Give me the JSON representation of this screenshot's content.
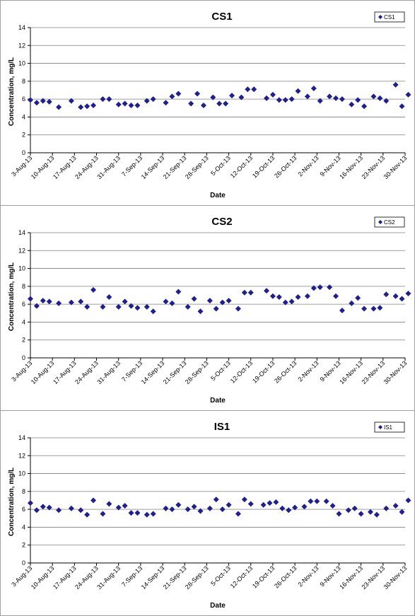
{
  "colors": {
    "marker": "#1f1f8f",
    "axis": "#000000",
    "grid": "#808080",
    "panel_border": "#a0a0a0"
  },
  "charts": [
    {
      "chart_data": {
        "type": "scatter",
        "title": "CS1",
        "xlabel": "Date",
        "ylabel": "Concentration, mg/L",
        "ylim": [
          0,
          14
        ],
        "yticks": [
          "0",
          "2",
          "4",
          "6",
          "8",
          "10",
          "12",
          "14"
        ],
        "xlim": [
          "2013-08-03",
          "2013-11-30"
        ],
        "xticks": [
          "3-Aug-13",
          "10-Aug-13",
          "17-Aug-13",
          "24-Aug-13",
          "31-Aug-13",
          "7-Sep-13",
          "14-Sep-13",
          "21-Sep-13",
          "28-Sep-13",
          "5-Oct-13",
          "12-Oct-13",
          "19-Oct-13",
          "26-Oct-13",
          "2-Nov-13",
          "9-Nov-13",
          "16-Nov-13",
          "23-Nov-13",
          "30-Nov-13"
        ],
        "grid": "horizontal",
        "legend": "top-right",
        "series": [
          {
            "name": "CS1",
            "points": [
              [
                "2013-08-03",
                5.9
              ],
              [
                "2013-08-05",
                5.6
              ],
              [
                "2013-08-07",
                5.8
              ],
              [
                "2013-08-09",
                5.7
              ],
              [
                "2013-08-12",
                5.1
              ],
              [
                "2013-08-16",
                5.8
              ],
              [
                "2013-08-19",
                5.1
              ],
              [
                "2013-08-21",
                5.2
              ],
              [
                "2013-08-23",
                5.3
              ],
              [
                "2013-08-26",
                6.0
              ],
              [
                "2013-08-28",
                6.0
              ],
              [
                "2013-08-31",
                5.4
              ],
              [
                "2013-09-02",
                5.5
              ],
              [
                "2013-09-04",
                5.3
              ],
              [
                "2013-09-06",
                5.3
              ],
              [
                "2013-09-09",
                5.8
              ],
              [
                "2013-09-11",
                6.0
              ],
              [
                "2013-09-15",
                5.6
              ],
              [
                "2013-09-17",
                6.3
              ],
              [
                "2013-09-19",
                6.6
              ],
              [
                "2013-09-23",
                5.5
              ],
              [
                "2013-09-25",
                6.6
              ],
              [
                "2013-09-27",
                5.3
              ],
              [
                "2013-09-30",
                6.2
              ],
              [
                "2013-10-02",
                5.5
              ],
              [
                "2013-10-04",
                5.5
              ],
              [
                "2013-10-06",
                6.4
              ],
              [
                "2013-10-09",
                6.2
              ],
              [
                "2013-10-11",
                7.1
              ],
              [
                "2013-10-13",
                7.1
              ],
              [
                "2013-10-17",
                6.1
              ],
              [
                "2013-10-19",
                6.5
              ],
              [
                "2013-10-21",
                5.9
              ],
              [
                "2013-10-23",
                5.9
              ],
              [
                "2013-10-25",
                6.0
              ],
              [
                "2013-10-27",
                6.9
              ],
              [
                "2013-10-30",
                6.3
              ],
              [
                "2013-11-01",
                7.2
              ],
              [
                "2013-11-03",
                5.8
              ],
              [
                "2013-11-06",
                6.3
              ],
              [
                "2013-11-08",
                6.1
              ],
              [
                "2013-11-10",
                6.0
              ],
              [
                "2013-11-13",
                5.4
              ],
              [
                "2013-11-15",
                5.9
              ],
              [
                "2013-11-17",
                5.2
              ],
              [
                "2013-11-20",
                6.3
              ],
              [
                "2013-11-22",
                6.1
              ],
              [
                "2013-11-24",
                5.8
              ],
              [
                "2013-11-27",
                7.6
              ],
              [
                "2013-11-29",
                5.2
              ],
              [
                "2013-12-01",
                6.5
              ]
            ]
          }
        ]
      }
    },
    {
      "chart_data": {
        "type": "scatter",
        "title": "CS2",
        "xlabel": "Date",
        "ylabel": "Concentration, mg/L",
        "ylim": [
          0,
          14
        ],
        "yticks": [
          "0",
          "2",
          "4",
          "6",
          "8",
          "10",
          "12",
          "14"
        ],
        "xlim": [
          "2013-08-03",
          "2013-11-30"
        ],
        "xticks": [
          "3-Aug-13",
          "10-Aug-13",
          "17-Aug-13",
          "24-Aug-13",
          "31-Aug-13",
          "7-Sep-13",
          "14-Sep-13",
          "21-Sep-13",
          "28-Sep-13",
          "5-Oct-13",
          "12-Oct-13",
          "19-Oct-13",
          "26-Oct-13",
          "2-Nov-13",
          "9-Nov-13",
          "16-Nov-13",
          "23-Nov-13",
          "30-Nov-13"
        ],
        "grid": "horizontal",
        "legend": "top-right",
        "series": [
          {
            "name": "CS2",
            "points": [
              [
                "2013-08-03",
                6.6
              ],
              [
                "2013-08-05",
                5.8
              ],
              [
                "2013-08-07",
                6.4
              ],
              [
                "2013-08-09",
                6.3
              ],
              [
                "2013-08-12",
                6.1
              ],
              [
                "2013-08-16",
                6.2
              ],
              [
                "2013-08-19",
                6.3
              ],
              [
                "2013-08-21",
                5.7
              ],
              [
                "2013-08-23",
                7.6
              ],
              [
                "2013-08-26",
                5.7
              ],
              [
                "2013-08-28",
                6.8
              ],
              [
                "2013-08-31",
                5.7
              ],
              [
                "2013-09-02",
                6.3
              ],
              [
                "2013-09-04",
                5.8
              ],
              [
                "2013-09-06",
                5.6
              ],
              [
                "2013-09-09",
                5.7
              ],
              [
                "2013-09-11",
                5.2
              ],
              [
                "2013-09-15",
                6.3
              ],
              [
                "2013-09-17",
                6.1
              ],
              [
                "2013-09-19",
                7.4
              ],
              [
                "2013-09-22",
                5.7
              ],
              [
                "2013-09-24",
                6.6
              ],
              [
                "2013-09-26",
                5.2
              ],
              [
                "2013-09-29",
                6.4
              ],
              [
                "2013-10-01",
                5.5
              ],
              [
                "2013-10-03",
                6.2
              ],
              [
                "2013-10-05",
                6.4
              ],
              [
                "2013-10-08",
                5.5
              ],
              [
                "2013-10-10",
                7.3
              ],
              [
                "2013-10-12",
                7.3
              ],
              [
                "2013-10-17",
                7.5
              ],
              [
                "2013-10-19",
                6.9
              ],
              [
                "2013-10-21",
                6.8
              ],
              [
                "2013-10-23",
                6.2
              ],
              [
                "2013-10-25",
                6.3
              ],
              [
                "2013-10-27",
                6.8
              ],
              [
                "2013-10-30",
                6.9
              ],
              [
                "2013-11-01",
                7.8
              ],
              [
                "2013-11-03",
                7.9
              ],
              [
                "2013-11-06",
                7.9
              ],
              [
                "2013-11-08",
                6.9
              ],
              [
                "2013-11-10",
                5.3
              ],
              [
                "2013-11-13",
                6.1
              ],
              [
                "2013-11-15",
                6.7
              ],
              [
                "2013-11-17",
                5.5
              ],
              [
                "2013-11-20",
                5.5
              ],
              [
                "2013-11-22",
                5.6
              ],
              [
                "2013-11-24",
                7.1
              ],
              [
                "2013-11-27",
                6.9
              ],
              [
                "2013-11-29",
                6.6
              ],
              [
                "2013-12-01",
                7.2
              ]
            ]
          }
        ]
      }
    },
    {
      "chart_data": {
        "type": "scatter",
        "title": "IS1",
        "xlabel": "Date",
        "ylabel": "Concentration, mg/L",
        "ylim": [
          0,
          14
        ],
        "yticks": [
          "0",
          "2",
          "4",
          "6",
          "8",
          "10",
          "12",
          "14"
        ],
        "xlim": [
          "2013-08-03",
          "2013-11-30"
        ],
        "xticks": [
          "3-Aug-13",
          "10-Aug-13",
          "17-Aug-13",
          "24-Aug-13",
          "31-Aug-13",
          "7-Sep-13",
          "14-Sep-13",
          "21-Sep-13",
          "28-Sep-13",
          "5-Oct-13",
          "12-Oct-13",
          "19-Oct-13",
          "26-Oct-13",
          "2-Nov-13",
          "9-Nov-13",
          "16-Nov-13",
          "23-Nov-13",
          "30-Nov-13"
        ],
        "grid": "horizontal",
        "legend": "top-right",
        "series": [
          {
            "name": "IS1",
            "points": [
              [
                "2013-08-03",
                6.7
              ],
              [
                "2013-08-05",
                5.9
              ],
              [
                "2013-08-07",
                6.3
              ],
              [
                "2013-08-09",
                6.2
              ],
              [
                "2013-08-12",
                5.9
              ],
              [
                "2013-08-16",
                6.1
              ],
              [
                "2013-08-19",
                5.9
              ],
              [
                "2013-08-21",
                5.4
              ],
              [
                "2013-08-23",
                7.0
              ],
              [
                "2013-08-26",
                5.5
              ],
              [
                "2013-08-28",
                6.6
              ],
              [
                "2013-08-31",
                6.2
              ],
              [
                "2013-09-02",
                6.4
              ],
              [
                "2013-09-04",
                5.6
              ],
              [
                "2013-09-06",
                5.6
              ],
              [
                "2013-09-09",
                5.4
              ],
              [
                "2013-09-11",
                5.5
              ],
              [
                "2013-09-15",
                6.1
              ],
              [
                "2013-09-17",
                6.0
              ],
              [
                "2013-09-19",
                6.5
              ],
              [
                "2013-09-22",
                6.0
              ],
              [
                "2013-09-24",
                6.3
              ],
              [
                "2013-09-26",
                5.8
              ],
              [
                "2013-09-29",
                6.1
              ],
              [
                "2013-10-01",
                7.1
              ],
              [
                "2013-10-03",
                6.0
              ],
              [
                "2013-10-05",
                6.5
              ],
              [
                "2013-10-08",
                5.5
              ],
              [
                "2013-10-10",
                7.1
              ],
              [
                "2013-10-12",
                6.6
              ],
              [
                "2013-10-16",
                6.5
              ],
              [
                "2013-10-18",
                6.7
              ],
              [
                "2013-10-20",
                6.8
              ],
              [
                "2013-10-22",
                6.1
              ],
              [
                "2013-10-24",
                5.9
              ],
              [
                "2013-10-26",
                6.2
              ],
              [
                "2013-10-29",
                6.3
              ],
              [
                "2013-10-31",
                6.9
              ],
              [
                "2013-11-02",
                6.9
              ],
              [
                "2013-11-05",
                6.9
              ],
              [
                "2013-11-07",
                6.4
              ],
              [
                "2013-11-09",
                5.5
              ],
              [
                "2013-11-12",
                5.9
              ],
              [
                "2013-11-14",
                6.1
              ],
              [
                "2013-11-16",
                5.5
              ],
              [
                "2013-11-19",
                5.7
              ],
              [
                "2013-11-21",
                5.4
              ],
              [
                "2013-11-24",
                6.1
              ],
              [
                "2013-11-27",
                6.4
              ],
              [
                "2013-11-29",
                5.7
              ],
              [
                "2013-12-01",
                7.0
              ]
            ]
          }
        ]
      }
    }
  ]
}
